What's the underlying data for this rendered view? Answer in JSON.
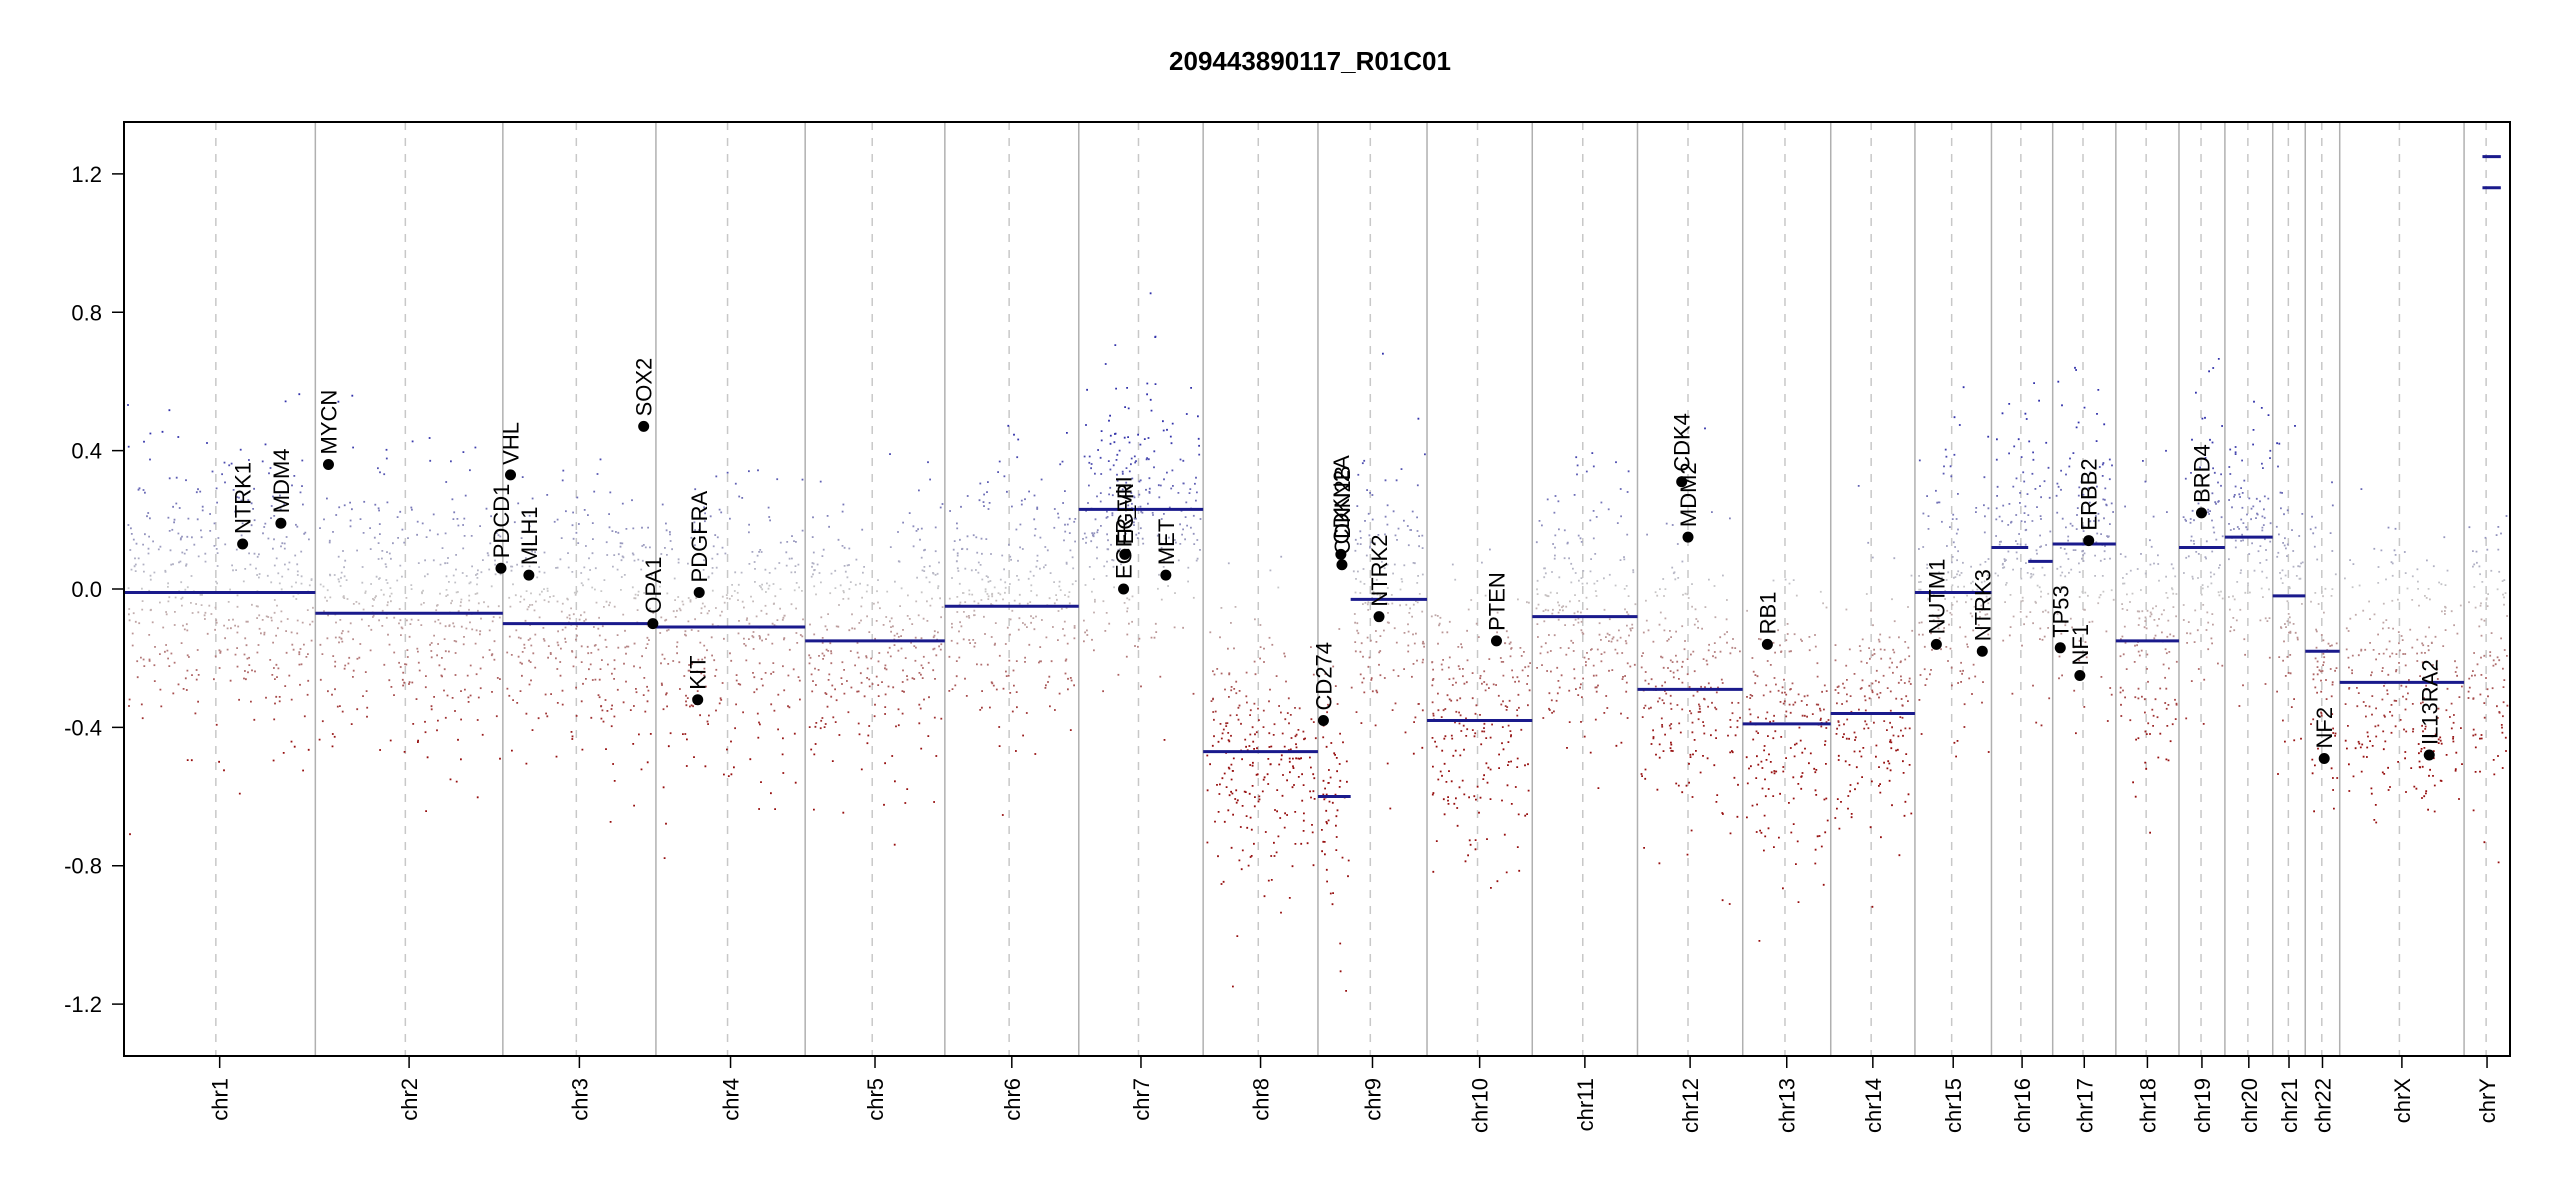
{
  "chart_data": {
    "type": "scatter",
    "title": "209443890117_R01C01",
    "xlabel": "",
    "ylabel": "",
    "ylim": [
      -1.35,
      1.35
    ],
    "y_ticks": [
      "-1.2",
      "-0.8",
      "-0.4",
      "0.0",
      "0.4",
      "0.8",
      "1.2"
    ],
    "y_tick_values": [
      -1.2,
      -0.8,
      -0.4,
      0.0,
      0.4,
      0.8,
      1.2
    ],
    "colors": {
      "gain": "#3c3cb4",
      "loss": "#a01414",
      "segment": "#1a1a8c",
      "gene": "#000000",
      "boundary": "#b0b0b0"
    },
    "chromosomes": [
      {
        "name": "chr1",
        "rel": 1.0,
        "segments": [
          {
            "s": 0,
            "e": 1,
            "v": -0.01
          }
        ]
      },
      {
        "name": "chr2",
        "rel": 0.98,
        "segments": [
          {
            "s": 0,
            "e": 1,
            "v": -0.07
          }
        ]
      },
      {
        "name": "chr3",
        "rel": 0.8,
        "segments": [
          {
            "s": 0,
            "e": 1,
            "v": -0.1
          }
        ]
      },
      {
        "name": "chr4",
        "rel": 0.78,
        "segments": [
          {
            "s": 0,
            "e": 1,
            "v": -0.11
          }
        ]
      },
      {
        "name": "chr5",
        "rel": 0.73,
        "segments": [
          {
            "s": 0,
            "e": 1,
            "v": -0.15
          }
        ]
      },
      {
        "name": "chr6",
        "rel": 0.7,
        "segments": [
          {
            "s": 0,
            "e": 1,
            "v": -0.05
          }
        ]
      },
      {
        "name": "chr7",
        "rel": 0.65,
        "segments": [
          {
            "s": 0,
            "e": 1,
            "v": 0.23
          }
        ]
      },
      {
        "name": "chr8",
        "rel": 0.6,
        "segments": [
          {
            "s": 0,
            "e": 1,
            "v": -0.47
          }
        ]
      },
      {
        "name": "chr9",
        "rel": 0.57,
        "segments": [
          {
            "s": 0,
            "e": 0.3,
            "v": -0.6
          },
          {
            "s": 0.3,
            "e": 1,
            "v": -0.03
          }
        ]
      },
      {
        "name": "chr10",
        "rel": 0.55,
        "segments": [
          {
            "s": 0,
            "e": 1,
            "v": -0.38
          }
        ]
      },
      {
        "name": "chr11",
        "rel": 0.55,
        "segments": [
          {
            "s": 0,
            "e": 1,
            "v": -0.08
          }
        ]
      },
      {
        "name": "chr12",
        "rel": 0.55,
        "segments": [
          {
            "s": 0,
            "e": 1,
            "v": -0.29
          }
        ]
      },
      {
        "name": "chr13",
        "rel": 0.46,
        "segments": [
          {
            "s": 0,
            "e": 1,
            "v": -0.39
          }
        ]
      },
      {
        "name": "chr14",
        "rel": 0.44,
        "segments": [
          {
            "s": 0,
            "e": 1,
            "v": -0.36
          }
        ]
      },
      {
        "name": "chr15",
        "rel": 0.4,
        "segments": [
          {
            "s": 0,
            "e": 1,
            "v": -0.01
          }
        ]
      },
      {
        "name": "chr16",
        "rel": 0.32,
        "segments": [
          {
            "s": 0,
            "e": 0.6,
            "v": 0.12
          },
          {
            "s": 0.6,
            "e": 1,
            "v": 0.08
          }
        ]
      },
      {
        "name": "chr17",
        "rel": 0.33,
        "segments": [
          {
            "s": 0,
            "e": 1,
            "v": 0.13
          }
        ]
      },
      {
        "name": "chr18",
        "rel": 0.33,
        "segments": [
          {
            "s": 0,
            "e": 1,
            "v": -0.15
          }
        ]
      },
      {
        "name": "chr19",
        "rel": 0.24,
        "segments": [
          {
            "s": 0,
            "e": 1,
            "v": 0.12
          }
        ]
      },
      {
        "name": "chr20",
        "rel": 0.25,
        "segments": [
          {
            "s": 0,
            "e": 1,
            "v": 0.15
          }
        ]
      },
      {
        "name": "chr21",
        "rel": 0.17,
        "segments": [
          {
            "s": 0,
            "e": 1,
            "v": -0.02
          }
        ]
      },
      {
        "name": "chr22",
        "rel": 0.18,
        "segments": [
          {
            "s": 0,
            "e": 1,
            "v": -0.18
          }
        ]
      },
      {
        "name": "chrX",
        "rel": 0.65,
        "segments": [
          {
            "s": 0,
            "e": 1,
            "v": -0.27
          }
        ]
      },
      {
        "name": "chrY",
        "rel": 0.24,
        "segments": [
          {
            "s": 0.4,
            "e": 0.8,
            "v": 1.25
          },
          {
            "s": 0.4,
            "e": 0.8,
            "v": 1.16
          }
        ]
      }
    ],
    "genes": [
      {
        "name": "NTRK1",
        "chr": "chr1",
        "pos": 0.62,
        "value": 0.13
      },
      {
        "name": "MDM4",
        "chr": "chr1",
        "pos": 0.82,
        "value": 0.19
      },
      {
        "name": "MYCN",
        "chr": "chr2",
        "pos": 0.07,
        "value": 0.36
      },
      {
        "name": "PDCD1",
        "chr": "chr2",
        "pos": 0.99,
        "value": 0.06
      },
      {
        "name": "VHL",
        "chr": "chr3",
        "pos": 0.05,
        "value": 0.33
      },
      {
        "name": "MLH1",
        "chr": "chr3",
        "pos": 0.17,
        "value": 0.04
      },
      {
        "name": "SOX2",
        "chr": "chr3",
        "pos": 0.92,
        "value": 0.47
      },
      {
        "name": "OPA1",
        "chr": "chr3",
        "pos": 0.98,
        "value": -0.1
      },
      {
        "name": "KIT",
        "chr": "chr4",
        "pos": 0.28,
        "value": -0.32
      },
      {
        "name": "PDGFRA",
        "chr": "chr4",
        "pos": 0.29,
        "value": -0.01
      },
      {
        "name": "EGFR_vIII",
        "chr": "chr7",
        "pos": 0.36,
        "value": 0.0
      },
      {
        "name": "EGFR",
        "chr": "chr7",
        "pos": 0.37,
        "value": 0.1
      },
      {
        "name": "MET",
        "chr": "chr7",
        "pos": 0.7,
        "value": 0.04
      },
      {
        "name": "CD274",
        "chr": "chr9",
        "pos": 0.05,
        "value": -0.38
      },
      {
        "name": "CDKN2A",
        "chr": "chr9",
        "pos": 0.21,
        "value": 0.1
      },
      {
        "name": "CDKN2B",
        "chr": "chr9",
        "pos": 0.22,
        "value": 0.07
      },
      {
        "name": "NTRK2",
        "chr": "chr9",
        "pos": 0.56,
        "value": -0.08
      },
      {
        "name": "PTEN",
        "chr": "chr10",
        "pos": 0.66,
        "value": -0.15
      },
      {
        "name": "CDK4",
        "chr": "chr12",
        "pos": 0.42,
        "value": 0.31
      },
      {
        "name": "MDM2",
        "chr": "chr12",
        "pos": 0.48,
        "value": 0.15
      },
      {
        "name": "RB1",
        "chr": "chr13",
        "pos": 0.28,
        "value": -0.16
      },
      {
        "name": "NUTM1",
        "chr": "chr15",
        "pos": 0.28,
        "value": -0.16
      },
      {
        "name": "NTRK3",
        "chr": "chr15",
        "pos": 0.88,
        "value": -0.18
      },
      {
        "name": "TP53",
        "chr": "chr17",
        "pos": 0.12,
        "value": -0.17
      },
      {
        "name": "NF1",
        "chr": "chr17",
        "pos": 0.43,
        "value": -0.25
      },
      {
        "name": "ERBB2",
        "chr": "chr17",
        "pos": 0.57,
        "value": 0.14
      },
      {
        "name": "BRD4",
        "chr": "chr19",
        "pos": 0.49,
        "value": 0.22
      },
      {
        "name": "NF2",
        "chr": "chr22",
        "pos": 0.55,
        "value": -0.49
      },
      {
        "name": "IL13RA2",
        "chr": "chrX",
        "pos": 0.72,
        "value": -0.48
      }
    ]
  }
}
